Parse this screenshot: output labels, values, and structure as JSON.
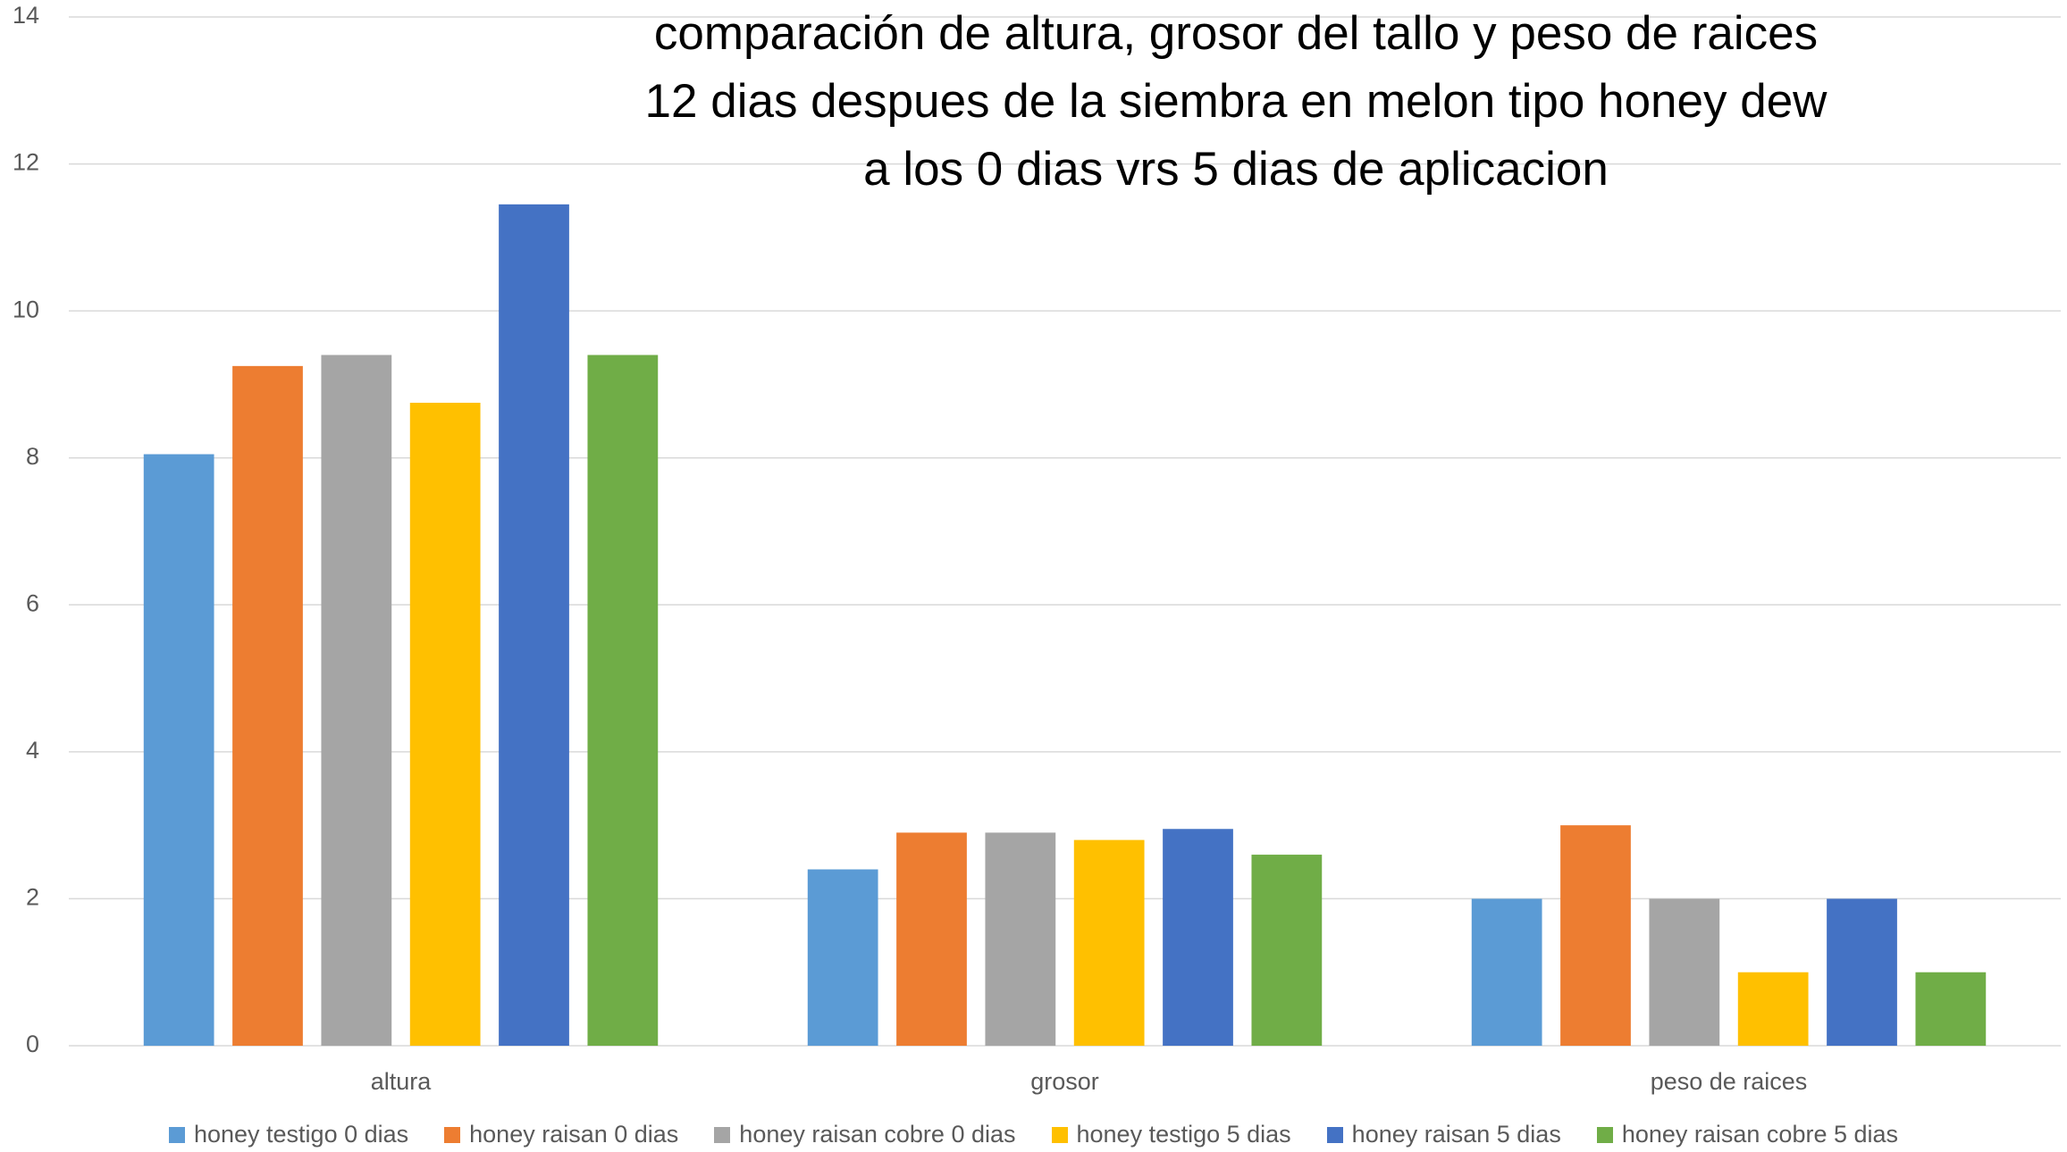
{
  "chart_data": {
    "type": "bar",
    "title": "comparación de altura, grosor del tallo y peso de raices 12 dias despues de la siembra en melon tipo honey dew a los 0 dias vrs 5 dias de aplicacion",
    "categories": [
      "altura",
      "grosor",
      "peso de raices"
    ],
    "series": [
      {
        "name": "honey testigo 0 dias",
        "color": "#5b9bd5",
        "values": [
          8.05,
          2.4,
          2
        ]
      },
      {
        "name": "honey raisan 0 dias",
        "color": "#ed7d31",
        "values": [
          9.25,
          2.9,
          3
        ]
      },
      {
        "name": "honey raisan cobre 0 dias",
        "color": "#a5a5a5",
        "values": [
          9.4,
          2.9,
          2
        ]
      },
      {
        "name": "honey testigo 5 dias",
        "color": "#ffc000",
        "values": [
          8.75,
          2.8,
          1
        ]
      },
      {
        "name": "honey raisan 5 dias",
        "color": "#4472c4",
        "values": [
          11.45,
          2.95,
          2
        ]
      },
      {
        "name": "honey raisan cobre 5 dias",
        "color": "#70ad47",
        "values": [
          9.4,
          2.6,
          1
        ]
      }
    ],
    "ylim": [
      0,
      14
    ],
    "yticks": [
      0,
      2,
      4,
      6,
      8,
      10,
      12,
      14
    ],
    "grid": true,
    "legend": "bottom"
  }
}
